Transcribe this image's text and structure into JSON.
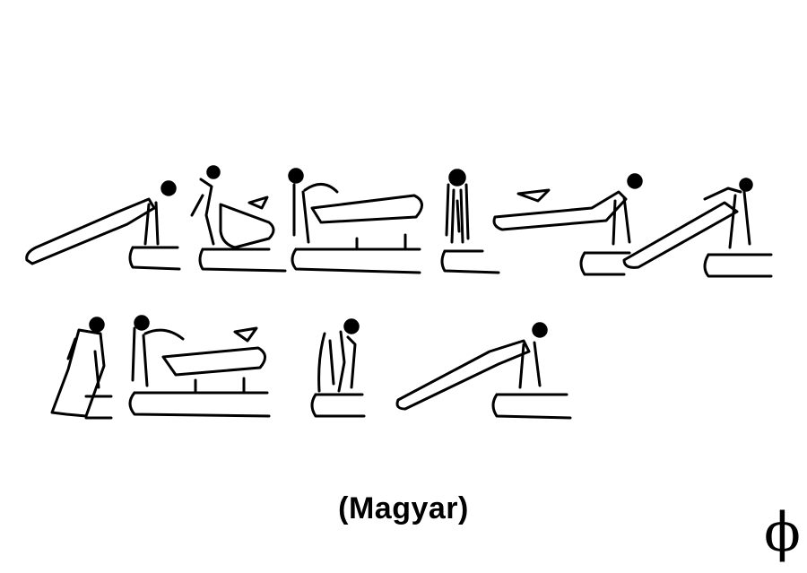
{
  "caption": "(Magyar)",
  "difficulty_symbol": "ϕ",
  "colors": {
    "ink": "#000000",
    "background": "#ffffff"
  },
  "figures": [
    {
      "row": 1,
      "pose": "front-support-body-extended-left"
    },
    {
      "row": 1,
      "pose": "swing-legs-under-body"
    },
    {
      "row": 1,
      "pose": "rear-support-body-extended-right"
    },
    {
      "row": 1,
      "pose": "upright-support-turning"
    },
    {
      "row": 1,
      "pose": "front-support-body-extended-left"
    },
    {
      "row": 1,
      "pose": "travel-along-pommel"
    },
    {
      "row": 2,
      "pose": "upright-support-turning"
    },
    {
      "row": 2,
      "pose": "rear-support-body-extended-right"
    },
    {
      "row": 2,
      "pose": "upright-support-turning"
    },
    {
      "row": 2,
      "pose": "front-support-body-extended-left"
    }
  ]
}
